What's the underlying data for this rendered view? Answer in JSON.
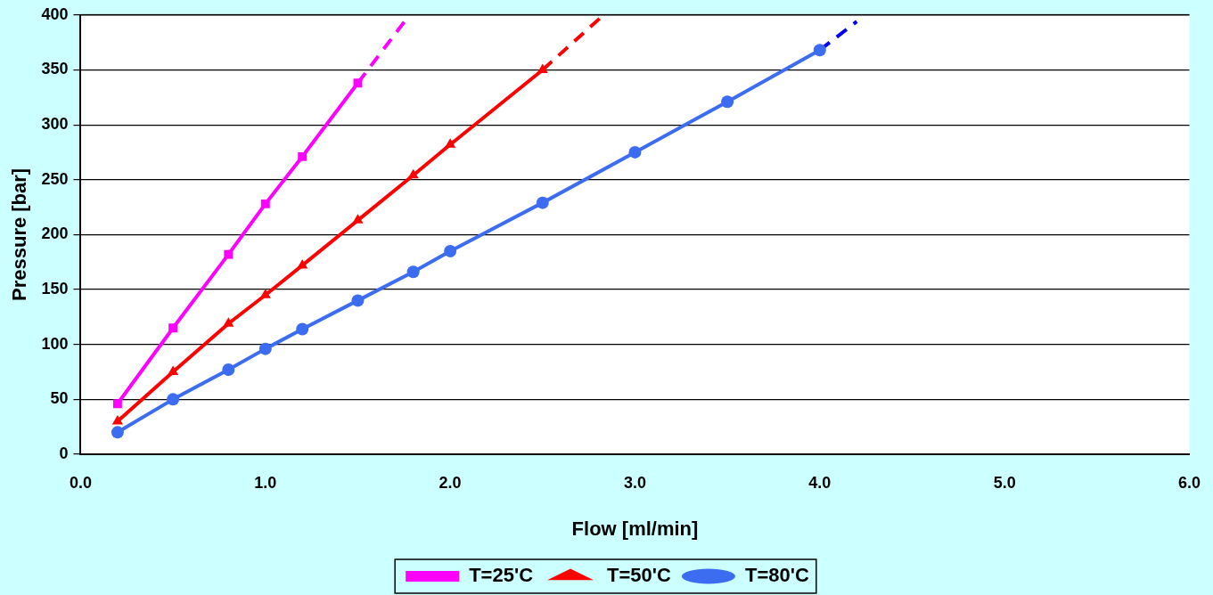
{
  "chart_data": {
    "type": "line",
    "xlabel": "Flow [ml/min]",
    "ylabel": "Pressure [bar]",
    "xlim": [
      0,
      6
    ],
    "xticks": [
      {
        "value": 0,
        "label": "0.0"
      },
      {
        "value": 1,
        "label": "1.0"
      },
      {
        "value": 2,
        "label": "2.0"
      },
      {
        "value": 3,
        "label": "3.0"
      },
      {
        "value": 4,
        "label": "4.0"
      },
      {
        "value": 5,
        "label": "5.0"
      },
      {
        "value": 6,
        "label": "6.0"
      }
    ],
    "ylim": [
      0,
      400
    ],
    "yticks": [
      0,
      50,
      100,
      150,
      200,
      250,
      300,
      350,
      400
    ],
    "grid": "y",
    "legend": "bottom",
    "series": [
      {
        "name": "T=25'C",
        "color": "#ff00ff",
        "marker": "square",
        "x": [
          0.2,
          0.5,
          0.8,
          1.0,
          1.2,
          1.5
        ],
        "values": [
          46,
          115,
          182,
          228,
          271,
          338
        ]
      },
      {
        "name": "T=50'C",
        "color": "#ff0000",
        "marker": "triangle",
        "x": [
          0.2,
          0.5,
          0.8,
          1.0,
          1.2,
          1.5,
          1.8,
          2.0,
          2.5
        ],
        "values": [
          30,
          75,
          119,
          145,
          172,
          213,
          254,
          282,
          350
        ]
      },
      {
        "name": "T=80'C",
        "color": "#3c6cf0",
        "marker": "circle",
        "x": [
          0.2,
          0.5,
          0.8,
          1.0,
          1.2,
          1.5,
          1.8,
          2.0,
          2.5,
          3.0,
          3.5,
          4.0
        ],
        "values": [
          20,
          50,
          77,
          96,
          114,
          140,
          166,
          185,
          229,
          275,
          321,
          368
        ]
      },
      {
        "color": "#ff00ff",
        "marker": "none",
        "line_style": "dashed",
        "x": [
          1.5,
          1.78
        ],
        "values": [
          338,
          400
        ]
      },
      {
        "color": "#ff0000",
        "marker": "none",
        "line_style": "dashed",
        "x": [
          2.5,
          2.83
        ],
        "values": [
          350,
          400
        ]
      },
      {
        "color": "#0000ee",
        "marker": "none",
        "line_style": "dashed",
        "x": [
          4.0,
          4.2
        ],
        "values": [
          368,
          394
        ]
      }
    ]
  }
}
